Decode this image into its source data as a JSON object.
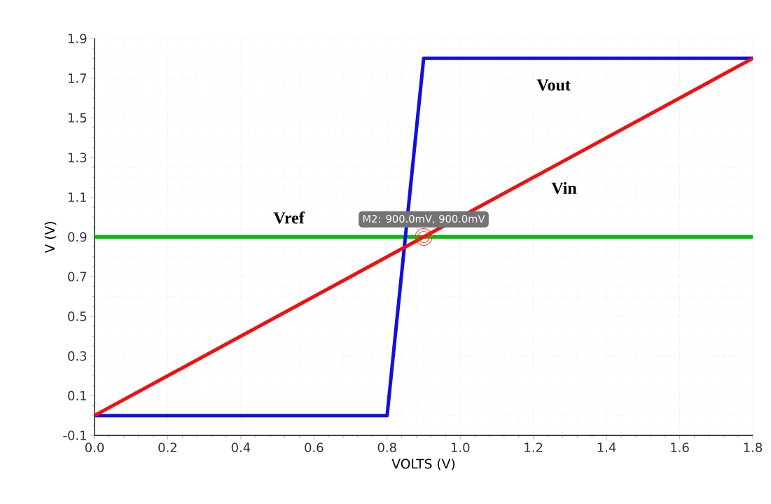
{
  "chart_data": {
    "type": "line",
    "xlabel": "VOLTS (V)",
    "ylabel": "V (V)",
    "series": [
      {
        "name": "Vref",
        "color": "#00c000",
        "x": [
          0,
          1.8
        ],
        "values": [
          0.9,
          0.9
        ]
      },
      {
        "name": "Vout",
        "color": "#1010e0",
        "x": [
          0,
          0.8,
          0.9,
          1.8
        ],
        "values": [
          0,
          0,
          1.8,
          1.8
        ]
      },
      {
        "name": "Vin",
        "color": "#f01010",
        "x": [
          0,
          1.8
        ],
        "values": [
          0,
          1.8
        ]
      }
    ],
    "xlim": [
      0,
      1.8
    ],
    "ylim": [
      -0.1,
      1.9
    ],
    "xticks": [
      {
        "value": 0,
        "label": "0.0"
      },
      0.2,
      0.4,
      0.6,
      0.8,
      {
        "value": 1,
        "label": "1.0"
      },
      1.2,
      1.4,
      1.6,
      1.8
    ],
    "yticks": [
      -0.1,
      0.1,
      0.3,
      0.5,
      0.7,
      0.9,
      1.1,
      1.3,
      1.5,
      1.7,
      1.9
    ],
    "annotations": [
      {
        "text": "M2: 900.0mV, 900.0mV",
        "x": 0.9,
        "y": 0.9
      }
    ],
    "grid": true
  }
}
